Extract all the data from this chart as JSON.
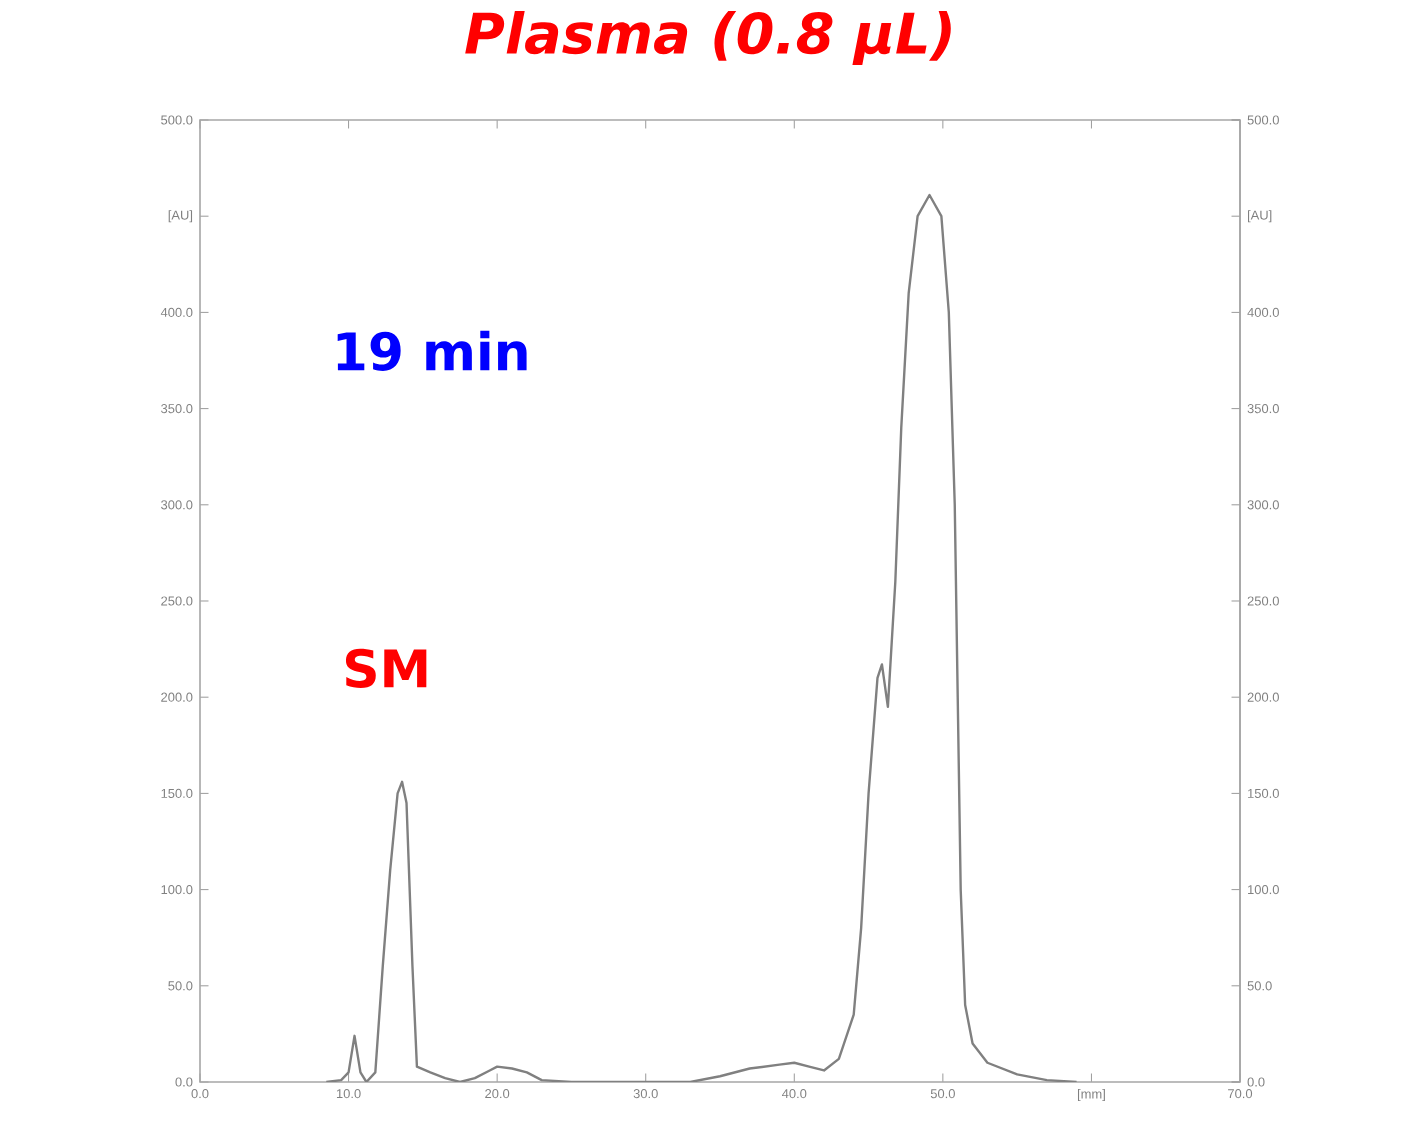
{
  "chart_data": {
    "type": "line",
    "title": "Plasma (0.8 µL)",
    "annotations": [
      "19 min",
      "SM"
    ],
    "x": [
      8.5,
      9.5,
      10.0,
      10.4,
      10.8,
      11.2,
      11.8,
      12.3,
      12.8,
      13.3,
      13.6,
      13.9,
      14.3,
      14.6,
      15.5,
      16.5,
      17.5,
      18.5,
      19.5,
      20.0,
      21.0,
      22.0,
      23.0,
      25.0,
      30.0,
      33.0,
      35.0,
      37.0,
      39.0,
      40.0,
      41.0,
      42.0,
      43.0,
      44.0,
      44.5,
      45.0,
      45.6,
      45.9,
      46.3,
      46.8,
      47.2,
      47.7,
      48.3,
      49.1,
      49.9,
      50.4,
      50.8,
      51.0,
      51.2,
      51.5,
      52.0,
      53.0,
      55.0,
      57.0,
      59.0
    ],
    "series": [
      {
        "color": "#808080",
        "values": [
          0,
          1,
          5,
          24,
          5,
          0,
          5,
          60,
          110,
          150,
          156,
          145,
          60,
          8,
          5,
          2,
          0,
          2,
          6,
          8,
          7,
          5,
          1,
          0,
          0,
          0,
          3,
          7,
          9,
          10,
          8,
          6,
          12,
          35,
          80,
          150,
          210,
          217,
          195,
          260,
          340,
          410,
          450,
          461,
          450,
          400,
          300,
          200,
          100,
          40,
          20,
          10,
          4,
          1,
          0
        ]
      }
    ],
    "xlim": [
      0,
      70
    ],
    "xticks": [
      {
        "value": 0,
        "label": "0.0"
      },
      {
        "value": 10,
        "label": "10.0"
      },
      {
        "value": 20,
        "label": "20.0"
      },
      {
        "value": 30,
        "label": "30.0"
      },
      {
        "value": 40,
        "label": "40.0"
      },
      {
        "value": 50,
        "label": "50.0"
      },
      {
        "value": 60,
        "label": "[mm]"
      },
      {
        "value": 70,
        "label": "70.0"
      }
    ],
    "ylim": [
      0,
      500
    ],
    "yticks": [
      {
        "value": 0,
        "label": "0.0"
      },
      {
        "value": 50,
        "label": "50.0"
      },
      {
        "value": 100,
        "label": "100.0"
      },
      {
        "value": 150,
        "label": "150.0"
      },
      {
        "value": 200,
        "label": "200.0"
      },
      {
        "value": 250,
        "label": "250.0"
      },
      {
        "value": 300,
        "label": "300.0"
      },
      {
        "value": 350,
        "label": "350.0"
      },
      {
        "value": 400,
        "label": "400.0"
      },
      {
        "value": 450,
        "label": "[AU]"
      },
      {
        "value": 500,
        "label": "500.0"
      }
    ],
    "y2lim": [
      0,
      500
    ],
    "y2ticks": [
      {
        "value": 0,
        "label": "0.0"
      },
      {
        "value": 50,
        "label": "50.0"
      },
      {
        "value": 100,
        "label": "100.0"
      },
      {
        "value": 150,
        "label": "150.0"
      },
      {
        "value": 200,
        "label": "200.0"
      },
      {
        "value": 250,
        "label": "250.0"
      },
      {
        "value": 300,
        "label": "300.0"
      },
      {
        "value": 350,
        "label": "350.0"
      },
      {
        "value": 400,
        "label": "400.0"
      },
      {
        "value": 450,
        "label": "[AU]"
      },
      {
        "value": 500,
        "label": "500.0"
      }
    ],
    "grid": false,
    "marker": "none",
    "line_style": "solid"
  }
}
